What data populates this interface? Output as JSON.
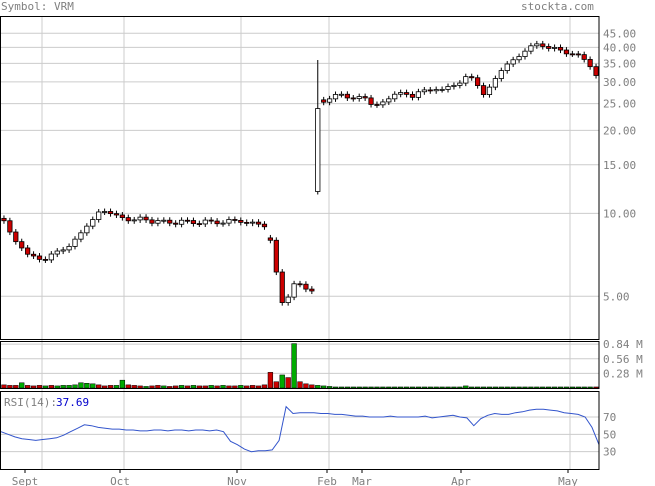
{
  "header": {
    "symbol_text": "Symbol: VRM",
    "brand_text": "stockta.com"
  },
  "colors": {
    "text": "#7f7f7f",
    "grid": "#cccccc",
    "frame": "#000000",
    "up": "#ffffff",
    "down": "#cc0000",
    "volume_up": "#00aa00",
    "volume_down": "#cc0000",
    "rsi_line": "#3355cc",
    "rsi_label": "#0000cc"
  },
  "chart_data": [
    {
      "type": "candlestick",
      "scale": "log",
      "title": "",
      "ylim": [
        3.5,
        52
      ],
      "y_ticks": [
        {
          "value": 5,
          "label": "5.00"
        },
        {
          "value": 10,
          "label": "10.00"
        },
        {
          "value": 15,
          "label": "15.00"
        },
        {
          "value": 20,
          "label": "20.00"
        },
        {
          "value": 25,
          "label": "25.00"
        },
        {
          "value": 30,
          "label": "30.00"
        },
        {
          "value": 35,
          "label": "35.00"
        },
        {
          "value": 40,
          "label": "40.00"
        },
        {
          "value": 45,
          "label": "45.00"
        }
      ],
      "x_ticks": [
        "Sept",
        "Oct",
        "Nov",
        "Feb",
        "Mar",
        "Apr",
        "May"
      ],
      "grid": true,
      "ohlc_segments": [
        {
          "from": 0,
          "to": 44,
          "prices": [
            9.4,
            8.1,
            7.7,
            7.0,
            6.9,
            6.8,
            7.1,
            7.4,
            7.6,
            8.1,
            9.0,
            9.5,
            10.3,
            10.1,
            9.7,
            9.5,
            9.5,
            9.6,
            9.3,
            9.4,
            9.3,
            9.2,
            9.4,
            9.3,
            9.2,
            9.4,
            9.3,
            9.2,
            9.5,
            9.4,
            9.1,
            9.3,
            9.0
          ]
        },
        {
          "from": 45,
          "to": 52,
          "prices": [
            7.9,
            5.8,
            4.4,
            5.4,
            5.6,
            5.4,
            5.2
          ]
        },
        {
          "from": 53,
          "to": 53,
          "prices": [
            24.0
          ]
        },
        {
          "from": 54,
          "to": 100,
          "prices": [
            25.5,
            26.5,
            27.0,
            26.5,
            26.0,
            26.5,
            25.0,
            24.5,
            26.0,
            27.5,
            27.0,
            26.5,
            28.0,
            27.5,
            28.5,
            28.0,
            29.0,
            30.0,
            31.5,
            30.0,
            27.0,
            29.0,
            33.0,
            35.0,
            36.0,
            39.0,
            40.5,
            41.0,
            40.0,
            39.5,
            38.5,
            38.0,
            37.0,
            35.5,
            31.5
          ]
        }
      ]
    },
    {
      "type": "bar",
      "title": "Volume",
      "ylim": [
        0,
        0.9
      ],
      "y_ticks": [
        {
          "value": 0.84,
          "label": "0.84 M"
        },
        {
          "value": 0.56,
          "label": "0.56 M"
        },
        {
          "value": 0.28,
          "label": "0.28 M"
        }
      ],
      "values": [
        0.06,
        0.05,
        0.05,
        0.1,
        0.05,
        0.04,
        0.05,
        0.04,
        0.05,
        0.04,
        0.05,
        0.05,
        0.06,
        0.1,
        0.09,
        0.08,
        0.06,
        0.04,
        0.05,
        0.05,
        0.15,
        0.06,
        0.05,
        0.04,
        0.03,
        0.04,
        0.05,
        0.04,
        0.03,
        0.04,
        0.05,
        0.04,
        0.05,
        0.04,
        0.04,
        0.05,
        0.04,
        0.05,
        0.04,
        0.04,
        0.05,
        0.04,
        0.05,
        0.04,
        0.06,
        0.3,
        0.12,
        0.25,
        0.2,
        0.85,
        0.12,
        0.08,
        0.06,
        0.05,
        0.04,
        0.03,
        0.02,
        0.02,
        0.02,
        0.02,
        0.02,
        0.02,
        0.02,
        0.02,
        0.02,
        0.02,
        0.02,
        0.02,
        0.02,
        0.02,
        0.02,
        0.02,
        0.02,
        0.02,
        0.02,
        0.02,
        0.02,
        0.02,
        0.04,
        0.02,
        0.02,
        0.02,
        0.02,
        0.02,
        0.02,
        0.02,
        0.02,
        0.02,
        0.02,
        0.02,
        0.02,
        0.02,
        0.02,
        0.02,
        0.02,
        0.02,
        0.02,
        0.02,
        0.02,
        0.02,
        0.02
      ],
      "up": [
        false,
        false,
        false,
        true,
        false,
        false,
        false,
        true,
        false,
        true,
        true,
        true,
        true,
        true,
        true,
        true,
        false,
        false,
        false,
        true,
        true,
        false,
        false,
        false,
        true,
        false,
        false,
        true,
        false,
        false,
        true,
        false,
        true,
        false,
        false,
        true,
        false,
        true,
        false,
        false,
        true,
        false,
        false,
        false,
        false,
        false,
        false,
        true,
        false,
        true,
        false,
        false,
        false,
        true,
        true,
        true,
        true,
        true,
        true,
        true,
        true,
        true,
        true,
        true,
        true,
        true,
        true,
        true,
        true,
        true,
        true,
        true,
        true,
        true,
        true,
        true,
        true,
        true,
        true,
        true,
        true,
        true,
        true,
        true,
        true,
        true,
        true,
        true,
        true,
        true,
        true,
        true,
        true,
        true,
        true,
        true,
        true,
        true,
        true,
        true,
        false
      ]
    },
    {
      "type": "line",
      "title": "",
      "label": "RSI(14):",
      "last_value": "37.69",
      "ylim": [
        10,
        100
      ],
      "y_ticks": [
        {
          "value": 70,
          "label": "70"
        },
        {
          "value": 50,
          "label": "50"
        },
        {
          "value": 30,
          "label": "30"
        }
      ],
      "values": [
        53,
        50,
        47,
        45,
        44,
        43,
        44,
        45,
        46,
        49,
        53,
        57,
        61,
        60,
        58,
        57,
        56,
        56,
        55,
        55,
        54,
        54,
        55,
        55,
        54,
        55,
        55,
        54,
        55,
        55,
        54,
        55,
        53,
        42,
        38,
        33,
        30,
        31,
        31,
        32,
        43,
        82,
        74,
        75,
        75,
        75,
        74,
        74,
        73,
        73,
        72,
        71,
        71,
        70,
        70,
        70,
        71,
        70,
        70,
        70,
        70,
        71,
        69,
        70,
        71,
        72,
        70,
        69,
        60,
        68,
        72,
        74,
        73,
        73,
        75,
        76,
        78,
        79,
        79,
        78,
        77,
        75,
        74,
        73,
        70,
        58,
        38
      ]
    }
  ]
}
